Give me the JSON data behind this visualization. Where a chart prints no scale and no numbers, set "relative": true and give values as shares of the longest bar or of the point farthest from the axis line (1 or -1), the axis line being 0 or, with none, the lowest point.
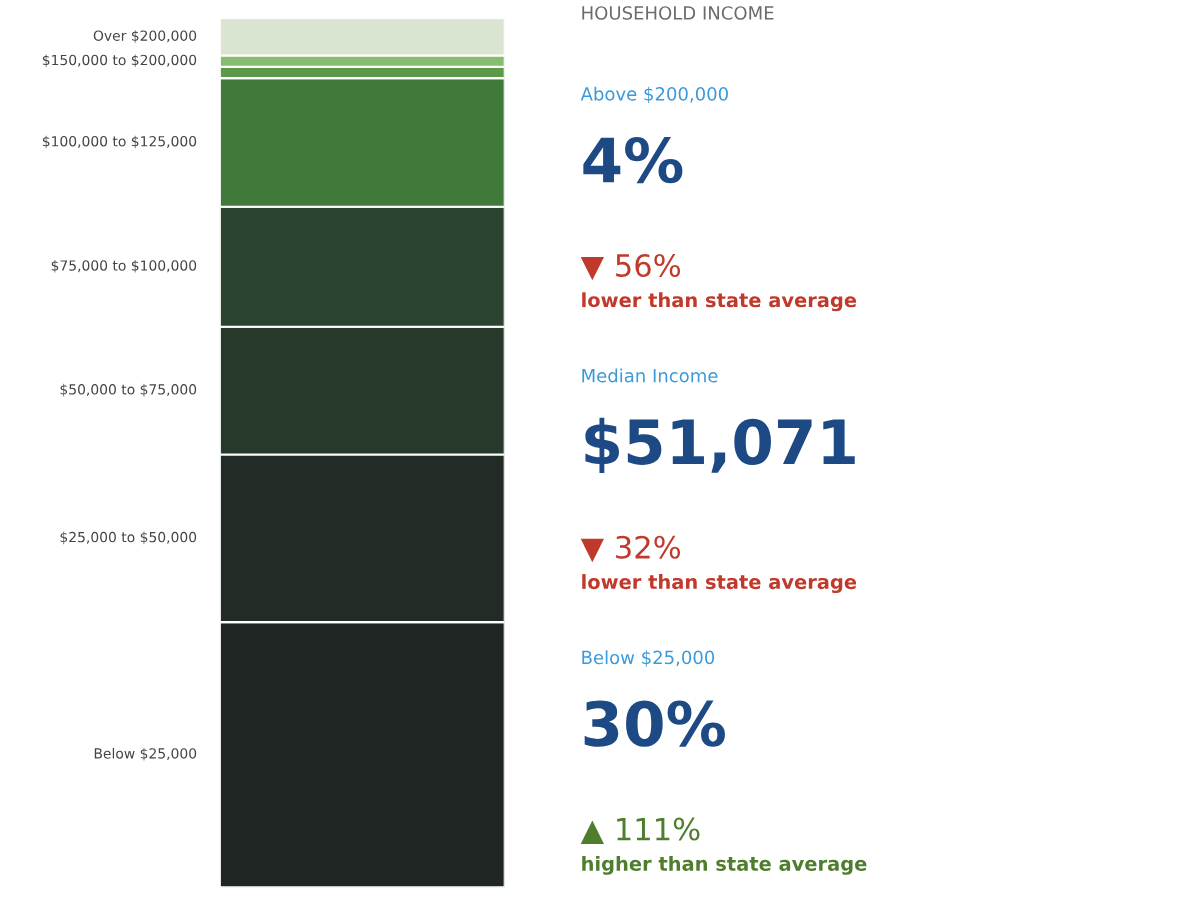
{
  "chart_data": [
    {
      "type": "bar",
      "stacked": true,
      "relative": true,
      "categories": [
        null
      ],
      "series": [
        {
          "name": "Below $25,000",
          "color": "#1e2522",
          "values": [
            0.305
          ]
        },
        {
          "name": "$25,000 to $50,000",
          "color": "#222b25",
          "values": [
            0.193
          ]
        },
        {
          "name": "$50,000 to $75,000",
          "color": "#27392b",
          "values": [
            0.147
          ]
        },
        {
          "name": "$75,000 to $100,000",
          "color": "#2b4430",
          "values": [
            0.138
          ]
        },
        {
          "name": "$100,000 to $125,000",
          "color": "#3f7a3a",
          "values": [
            0.148
          ]
        },
        {
          "color": "#5a9a48",
          "values": [
            0.013
          ]
        },
        {
          "name": "$150,000 to $200,000",
          "color": "#86bd6e",
          "values": [
            0.013
          ]
        },
        {
          "name": "Over $200,000",
          "color": "#d9e5d0",
          "values": [
            0.043
          ]
        }
      ]
    },
    {
      "type": "other",
      "title": "HOUSEHOLD INCOME",
      "annotations": [
        "Above $200,000",
        "4%",
        "▼ 56%",
        "lower than state average",
        "Median Income",
        "$51,071",
        "▼ 32%",
        "lower than state average",
        "Below $25,000",
        "30%",
        "▲ 111%",
        "higher than state average"
      ]
    }
  ]
}
